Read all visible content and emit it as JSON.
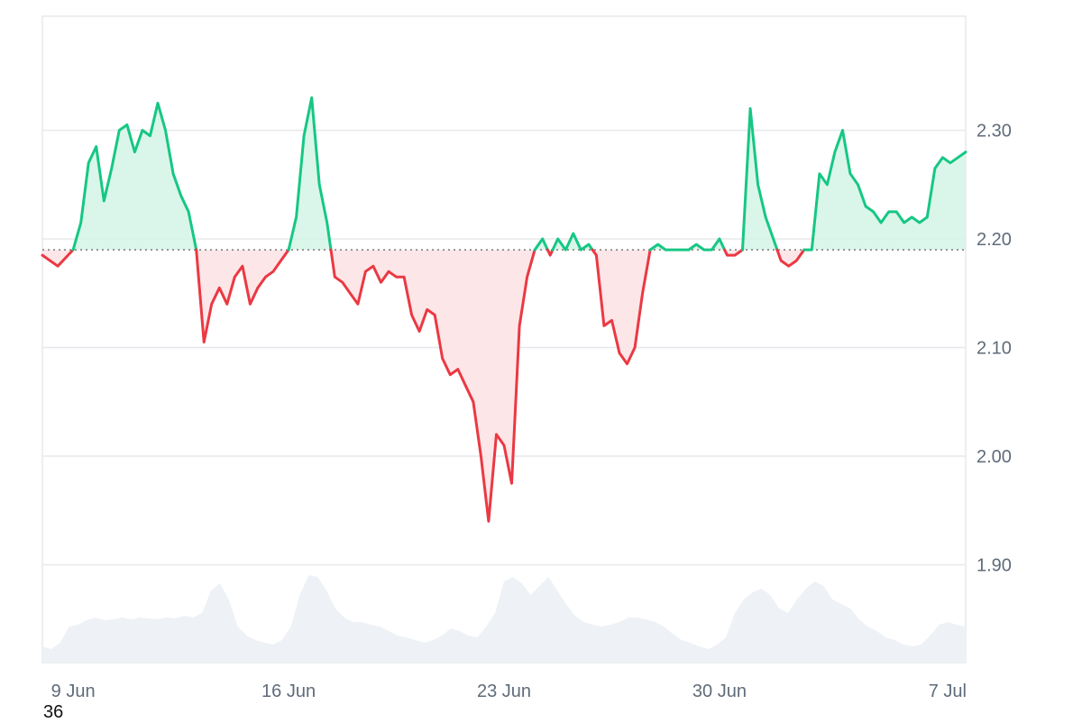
{
  "corner_label": "36",
  "chart_data": {
    "type": "area",
    "baseline": 2.19,
    "ylim": [
      1.81,
      2.405
    ],
    "yticks": [
      1.9,
      2.0,
      2.1,
      2.2,
      2.3
    ],
    "ytick_labels": [
      "1.90",
      "2.00",
      "2.10",
      "2.20",
      "2.30"
    ],
    "xlim": [
      "2025-06-08",
      "2025-07-08"
    ],
    "xticks": [
      "2025-06-09",
      "2025-06-16",
      "2025-06-23",
      "2025-06-30",
      "2025-07-07"
    ],
    "xtick_labels": [
      "9 Jun",
      "16 Jun",
      "23 Jun",
      "30 Jun",
      "7 Jul"
    ],
    "grid": true,
    "colors": {
      "up": "#16c784",
      "down": "#ea3943",
      "up_fill": "#d6f5e8",
      "down_fill": "#fde3e5",
      "volume": "#eef1f5",
      "grid": "#e6e8eb",
      "baseline": "#777777"
    },
    "series": [
      {
        "x": [
          "2025-06-08",
          "2025-06-08 12:00",
          "2025-06-09",
          "2025-06-09 06:00",
          "2025-06-09 12:00",
          "2025-06-09 18:00",
          "2025-06-10",
          "2025-06-10 06:00",
          "2025-06-10 12:00",
          "2025-06-10 18:00",
          "2025-06-11",
          "2025-06-11 06:00",
          "2025-06-11 12:00",
          "2025-06-11 18:00",
          "2025-06-12",
          "2025-06-12 06:00",
          "2025-06-12 12:00",
          "2025-06-12 18:00",
          "2025-06-13",
          "2025-06-13 06:00",
          "2025-06-13 12:00",
          "2025-06-13 18:00",
          "2025-06-14",
          "2025-06-14 06:00",
          "2025-06-14 12:00",
          "2025-06-14 18:00",
          "2025-06-15",
          "2025-06-15 06:00",
          "2025-06-15 12:00",
          "2025-06-15 18:00",
          "2025-06-16",
          "2025-06-16 06:00",
          "2025-06-16 12:00",
          "2025-06-16 18:00",
          "2025-06-17",
          "2025-06-17 06:00",
          "2025-06-17 12:00",
          "2025-06-17 18:00",
          "2025-06-18",
          "2025-06-18 06:00",
          "2025-06-18 12:00",
          "2025-06-18 18:00",
          "2025-06-19",
          "2025-06-19 06:00",
          "2025-06-19 12:00",
          "2025-06-19 18:00",
          "2025-06-20",
          "2025-06-20 06:00",
          "2025-06-20 12:00",
          "2025-06-20 18:00",
          "2025-06-21",
          "2025-06-21 06:00",
          "2025-06-21 12:00",
          "2025-06-21 18:00",
          "2025-06-22",
          "2025-06-22 06:00",
          "2025-06-22 12:00",
          "2025-06-22 18:00",
          "2025-06-23",
          "2025-06-23 06:00",
          "2025-06-23 12:00",
          "2025-06-23 18:00",
          "2025-06-24",
          "2025-06-24 06:00",
          "2025-06-24 12:00",
          "2025-06-24 18:00",
          "2025-06-25",
          "2025-06-25 06:00",
          "2025-06-25 12:00",
          "2025-06-25 18:00",
          "2025-06-26",
          "2025-06-26 06:00",
          "2025-06-26 12:00",
          "2025-06-26 18:00",
          "2025-06-27",
          "2025-06-27 06:00",
          "2025-06-27 12:00",
          "2025-06-27 18:00",
          "2025-06-28",
          "2025-06-28 06:00",
          "2025-06-28 12:00",
          "2025-06-28 18:00",
          "2025-06-29",
          "2025-06-29 06:00",
          "2025-06-29 12:00",
          "2025-06-29 18:00",
          "2025-06-30",
          "2025-06-30 06:00",
          "2025-06-30 12:00",
          "2025-06-30 18:00",
          "2025-07-01",
          "2025-07-01 06:00",
          "2025-07-01 12:00",
          "2025-07-01 18:00",
          "2025-07-02",
          "2025-07-02 06:00",
          "2025-07-02 12:00",
          "2025-07-02 18:00",
          "2025-07-03",
          "2025-07-03 06:00",
          "2025-07-03 12:00",
          "2025-07-03 18:00",
          "2025-07-04",
          "2025-07-04 06:00",
          "2025-07-04 12:00",
          "2025-07-04 18:00",
          "2025-07-05",
          "2025-07-05 06:00",
          "2025-07-05 12:00",
          "2025-07-05 18:00",
          "2025-07-06",
          "2025-07-06 06:00",
          "2025-07-06 12:00",
          "2025-07-06 18:00",
          "2025-07-07",
          "2025-07-07 06:00",
          "2025-07-07 12:00",
          "2025-07-07 18:00",
          "2025-07-08"
        ],
        "y": [
          2.185,
          2.175,
          2.19,
          2.215,
          2.27,
          2.285,
          2.235,
          2.265,
          2.3,
          2.305,
          2.28,
          2.3,
          2.295,
          2.325,
          2.3,
          2.26,
          2.24,
          2.225,
          2.19,
          2.105,
          2.14,
          2.155,
          2.14,
          2.165,
          2.175,
          2.14,
          2.155,
          2.165,
          2.17,
          2.18,
          2.19,
          2.22,
          2.295,
          2.33,
          2.25,
          2.215,
          2.165,
          2.16,
          2.15,
          2.14,
          2.17,
          2.175,
          2.16,
          2.17,
          2.165,
          2.165,
          2.13,
          2.115,
          2.135,
          2.13,
          2.09,
          2.075,
          2.08,
          2.065,
          2.05,
          2.0,
          1.94,
          2.02,
          2.01,
          1.975,
          2.12,
          2.165,
          2.19,
          2.2,
          2.185,
          2.2,
          2.19,
          2.205,
          2.19,
          2.195,
          2.185,
          2.12,
          2.125,
          2.095,
          2.085,
          2.1,
          2.15,
          2.19,
          2.195,
          2.19,
          2.19,
          2.19,
          2.19,
          2.195,
          2.19,
          2.19,
          2.2,
          2.185,
          2.185,
          2.19,
          2.32,
          2.25,
          2.22,
          2.2,
          2.18,
          2.175,
          2.18,
          2.19,
          2.19,
          2.26,
          2.25,
          2.28,
          2.3,
          2.26,
          2.25,
          2.23,
          2.225,
          2.215,
          2.225,
          2.225,
          2.215,
          2.22,
          2.215,
          2.22,
          2.265,
          2.275,
          2.27,
          2.275,
          2.28
        ]
      }
    ],
    "volume": [
      0.18,
      0.15,
      0.22,
      0.4,
      0.42,
      0.47,
      0.5,
      0.47,
      0.48,
      0.5,
      0.48,
      0.5,
      0.49,
      0.48,
      0.5,
      0.49,
      0.52,
      0.5,
      0.55,
      0.8,
      0.88,
      0.7,
      0.4,
      0.3,
      0.25,
      0.22,
      0.2,
      0.25,
      0.4,
      0.75,
      0.97,
      0.95,
      0.8,
      0.6,
      0.5,
      0.45,
      0.45,
      0.42,
      0.4,
      0.35,
      0.3,
      0.28,
      0.25,
      0.22,
      0.25,
      0.3,
      0.38,
      0.35,
      0.3,
      0.28,
      0.4,
      0.55,
      0.9,
      0.95,
      0.88,
      0.75,
      0.85,
      0.95,
      0.8,
      0.65,
      0.52,
      0.45,
      0.42,
      0.4,
      0.42,
      0.45,
      0.5,
      0.5,
      0.48,
      0.45,
      0.4,
      0.32,
      0.25,
      0.22,
      0.18,
      0.15,
      0.2,
      0.28,
      0.55,
      0.7,
      0.78,
      0.82,
      0.75,
      0.6,
      0.55,
      0.7,
      0.82,
      0.9,
      0.85,
      0.7,
      0.65,
      0.6,
      0.48,
      0.4,
      0.35,
      0.28,
      0.25,
      0.2,
      0.18,
      0.2,
      0.3,
      0.42,
      0.45,
      0.42,
      0.4
    ]
  }
}
